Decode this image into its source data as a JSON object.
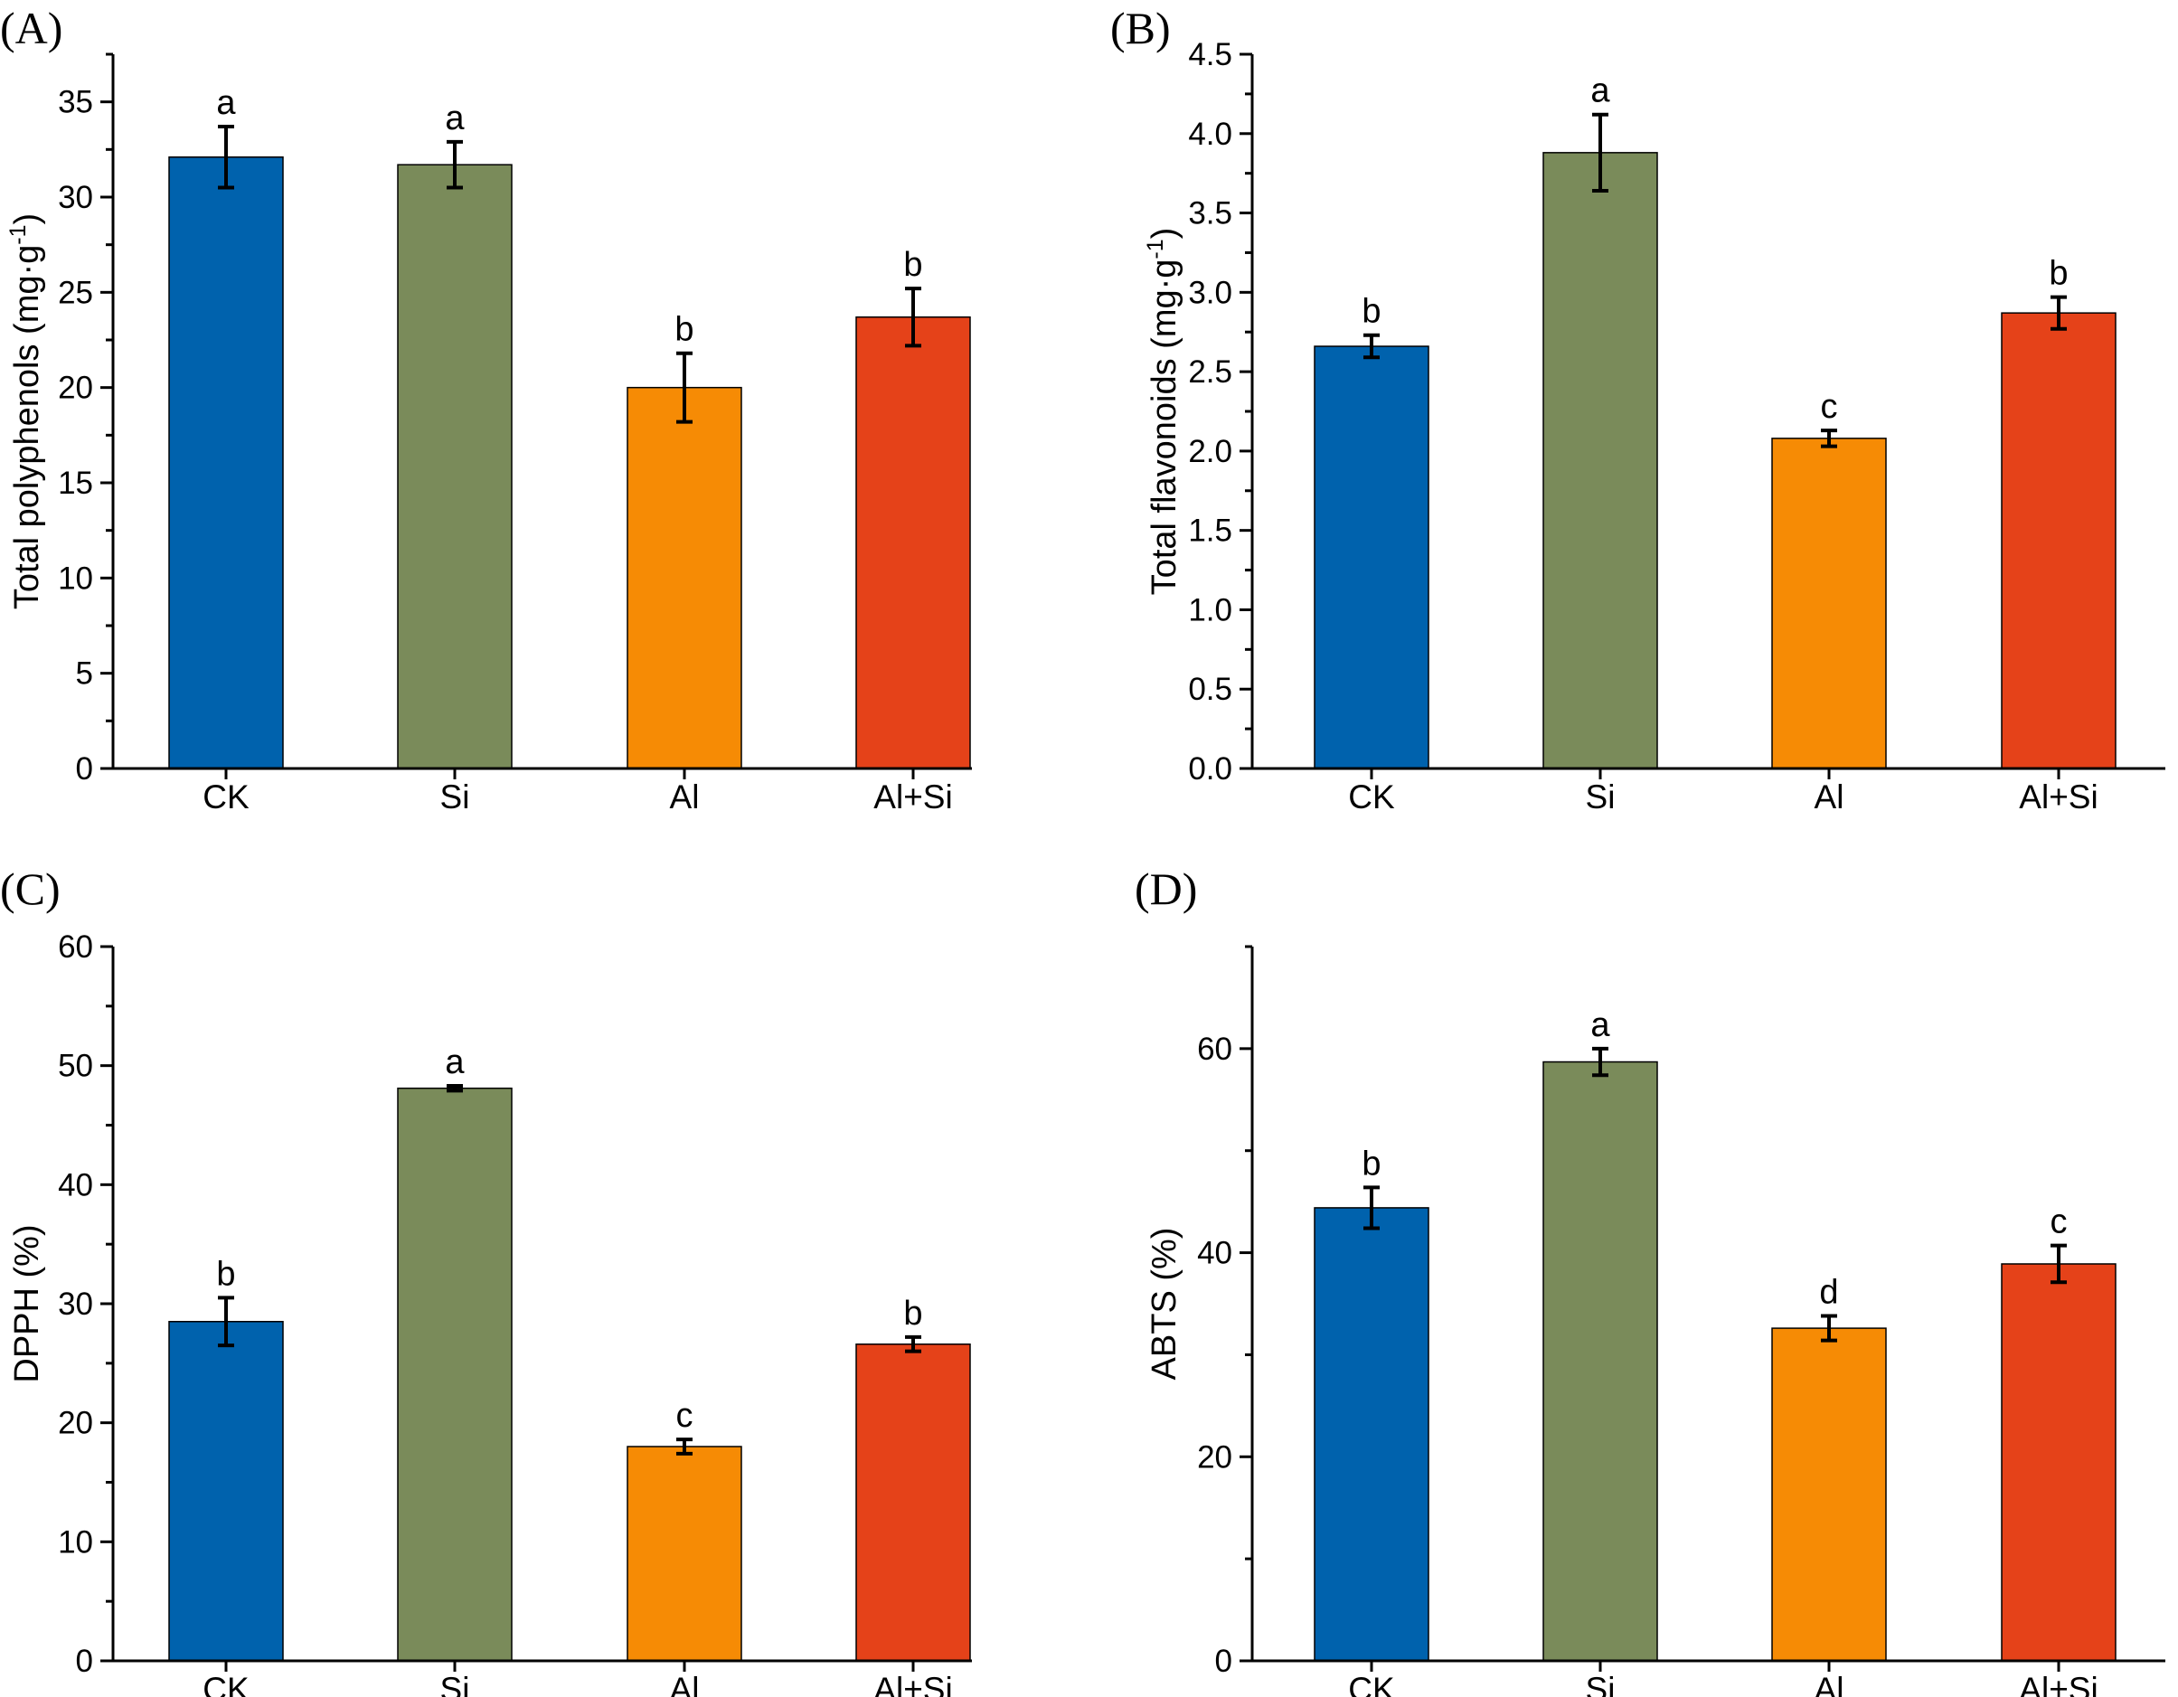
{
  "colors": {
    "CK": "#0062ad",
    "Si": "#7a8b5a",
    "Al": "#f68b05",
    "Al+Si": "#e54219",
    "axis": "#000000"
  },
  "chart_data": [
    {
      "type": "bar",
      "panel": "(A)",
      "ylabel": "Total polyphenols (mg·g",
      "ylabel_sup": "-1",
      "ylabel_end": ")",
      "ylim": [
        0,
        37.5
      ],
      "yticks": [
        0,
        5,
        10,
        15,
        20,
        25,
        30,
        35
      ],
      "ytick_labels": [
        "0",
        "5",
        "10",
        "15",
        "20",
        "25",
        "30",
        "35"
      ],
      "categories": [
        "CK",
        "Si",
        "Al",
        "Al+Si"
      ],
      "values": [
        32.1,
        31.7,
        20.0,
        23.7
      ],
      "errors": [
        1.6,
        1.2,
        1.8,
        1.5
      ],
      "significance": [
        "a",
        "a",
        "b",
        "b"
      ]
    },
    {
      "type": "bar",
      "panel": "(B)",
      "ylabel": "Total flavonoids (mg·g",
      "ylabel_sup": "-1",
      "ylabel_end": ")",
      "ylim": [
        0,
        4.5
      ],
      "yticks": [
        0,
        0.5,
        1.0,
        1.5,
        2.0,
        2.5,
        3.0,
        3.5,
        4.0,
        4.5
      ],
      "ytick_labels": [
        "0.0",
        "0.5",
        "1.0",
        "1.5",
        "2.0",
        "2.5",
        "3.0",
        "3.5",
        "4.0",
        "4.5"
      ],
      "categories": [
        "CK",
        "Si",
        "Al",
        "Al+Si"
      ],
      "values": [
        2.66,
        3.88,
        2.08,
        2.87
      ],
      "errors": [
        0.07,
        0.24,
        0.05,
        0.1
      ],
      "significance": [
        "b",
        "a",
        "c",
        "b"
      ]
    },
    {
      "type": "bar",
      "panel": "(C)",
      "ylabel": "DPPH (%)",
      "ylabel_sup": "",
      "ylabel_end": "",
      "ylim": [
        0,
        60
      ],
      "yticks": [
        0,
        10,
        20,
        30,
        40,
        50,
        60
      ],
      "ytick_labels": [
        "0",
        "10",
        "20",
        "30",
        "40",
        "50",
        "60"
      ],
      "categories": [
        "CK",
        "Si",
        "Al",
        "Al+Si"
      ],
      "values": [
        28.5,
        48.1,
        18.0,
        26.6
      ],
      "errors": [
        2.0,
        0.2,
        0.6,
        0.6
      ],
      "significance": [
        "b",
        "a",
        "c",
        "b"
      ]
    },
    {
      "type": "bar",
      "panel": "(D)",
      "ylabel": "ABTS (%)",
      "ylabel_sup": "",
      "ylabel_end": "",
      "ylim": [
        0,
        70
      ],
      "yticks": [
        0,
        20,
        40,
        60
      ],
      "ytick_labels": [
        "0",
        "20",
        "40",
        "60"
      ],
      "categories": [
        "CK",
        "Si",
        "Al",
        "Al+Si"
      ],
      "values": [
        44.4,
        58.7,
        32.6,
        38.9
      ],
      "errors": [
        2.0,
        1.3,
        1.2,
        1.8
      ],
      "significance": [
        "b",
        "a",
        "d",
        "c"
      ]
    }
  ]
}
